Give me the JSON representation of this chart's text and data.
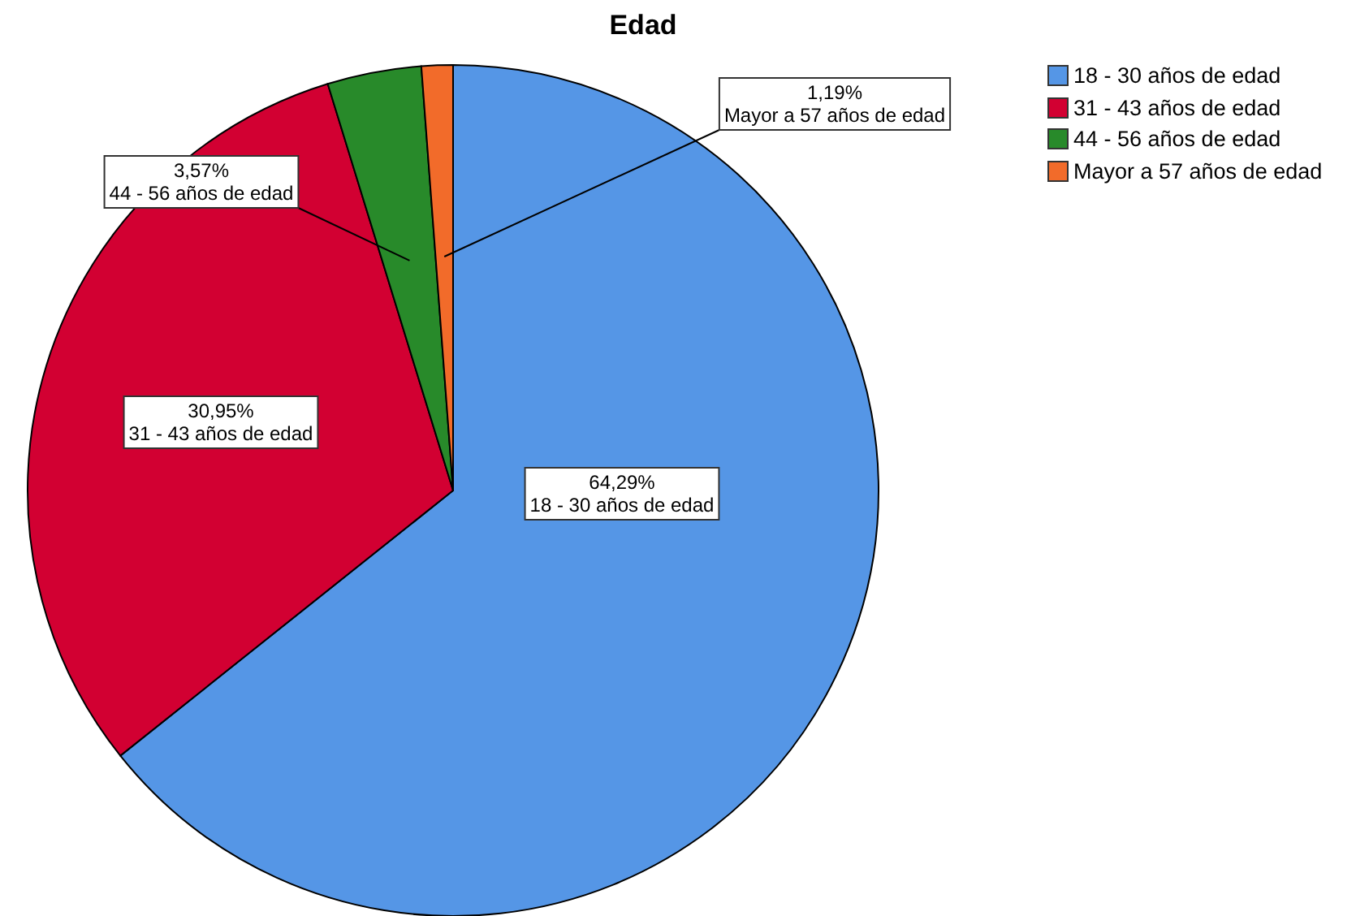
{
  "chart_data": {
    "type": "pie",
    "title": "Edad",
    "categories": [
      "18 - 30 años de edad",
      "31 - 43 años de edad",
      "44 - 56 años de edad",
      "Mayor a 57 años de edad"
    ],
    "values": [
      64.29,
      30.95,
      3.57,
      1.19
    ],
    "colors": [
      "#5596e6",
      "#d20032",
      "#288a2a",
      "#f26b2a"
    ],
    "value_labels": [
      "64,29%",
      "30,95%",
      "3,57%",
      "1,19%"
    ],
    "legend": "top right"
  }
}
